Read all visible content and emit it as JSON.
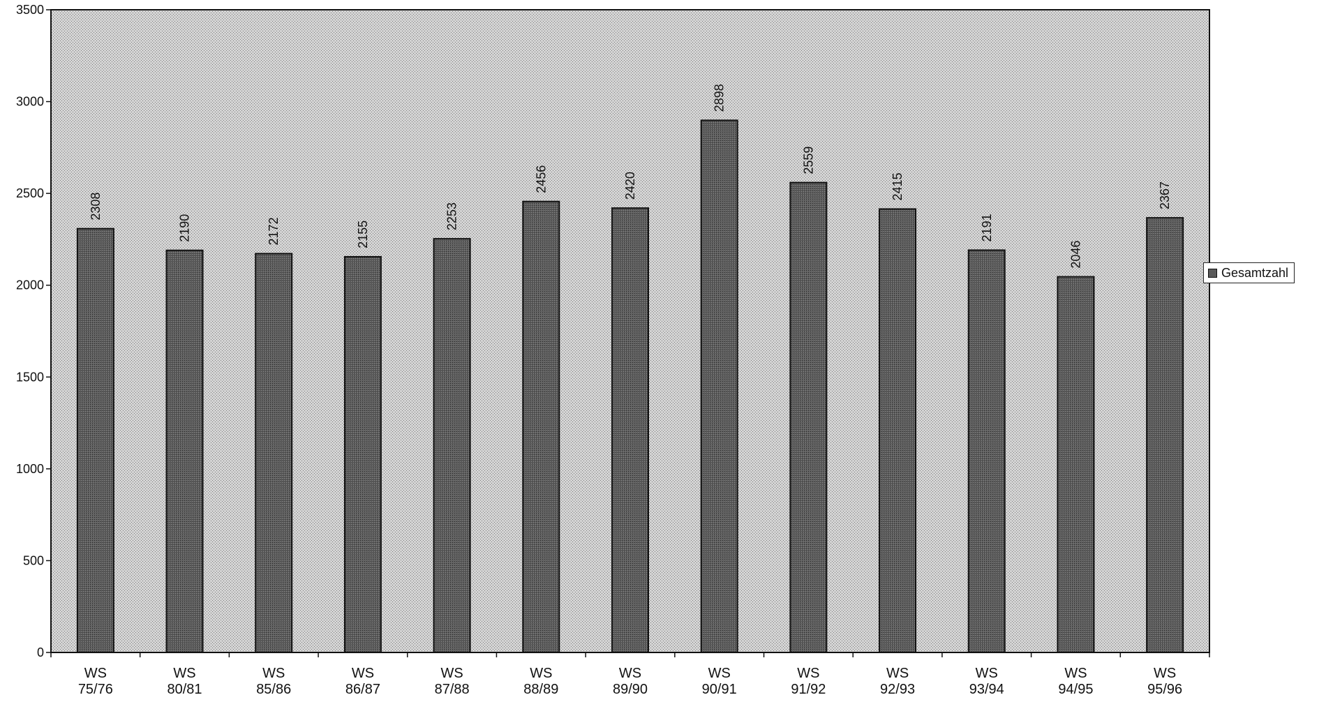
{
  "chart_data": {
    "type": "bar",
    "categories": [
      [
        "WS",
        "75/76"
      ],
      [
        "WS",
        "80/81"
      ],
      [
        "WS",
        "85/86"
      ],
      [
        "WS",
        "86/87"
      ],
      [
        "WS",
        "87/88"
      ],
      [
        "WS",
        "88/89"
      ],
      [
        "WS",
        "89/90"
      ],
      [
        "WS",
        "90/91"
      ],
      [
        "WS",
        "91/92"
      ],
      [
        "WS",
        "92/93"
      ],
      [
        "WS",
        "93/94"
      ],
      [
        "WS",
        "94/95"
      ],
      [
        "WS",
        "95/96"
      ]
    ],
    "series": [
      {
        "name": "Gesamtzahl",
        "values": [
          2308,
          2190,
          2172,
          2155,
          2253,
          2456,
          2420,
          2898,
          2559,
          2415,
          2191,
          2046,
          2367
        ]
      }
    ],
    "data_labels": [
      "2308",
      "2190",
      "2172",
      "2155",
      "2253",
      "2456",
      "2420",
      "2898",
      "2559",
      "2415",
      "2191",
      "2046",
      "2367"
    ],
    "yticks": [
      0,
      500,
      1000,
      1500,
      2000,
      2500,
      3000,
      3500
    ],
    "ylim": [
      0,
      3500
    ],
    "title": "",
    "xlabel": "",
    "ylabel": "",
    "grid": false,
    "legend_position": "right",
    "colors": {
      "plot_background": "#c8c8c8",
      "bar_fill": "#5a5a5a",
      "bar_stroke": "#111111",
      "axis": "#111111"
    }
  },
  "legend": {
    "label": "Gesamtzahl"
  }
}
